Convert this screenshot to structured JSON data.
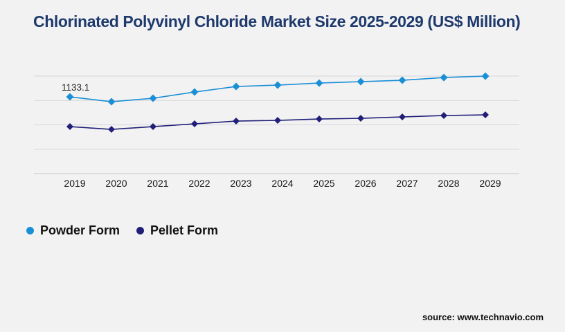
{
  "header": {
    "title": "Chlorinated Polyvinyl Chloride Market Size 2025-2029 (US$ Million)",
    "title_color": "#1e3a6c"
  },
  "chart_data": {
    "type": "line",
    "title": "Chlorinated Polyvinyl Chloride Market Size 2025-2029 (US$ Million)",
    "x": [
      2019,
      2020,
      2021,
      2022,
      2023,
      2024,
      2025,
      2026,
      2027,
      2028,
      2029
    ],
    "xlabel": "",
    "ylabel": "",
    "ylim": [
      0,
      1440
    ],
    "y_axis_labels_visible": false,
    "gridlines": true,
    "legend_position": "bottom-left",
    "series": [
      {
        "name": "Powder Form",
        "color": "#1b8fd6",
        "marker": "diamond",
        "values": [
          1133.1,
          1061.6,
          1112.7,
          1204.5,
          1286.2,
          1306.6,
          1337.2,
          1357.7,
          1378.1,
          1418.9,
          1439.3
        ]
      },
      {
        "name": "Pellet Form",
        "color": "#211f78",
        "marker": "diamond",
        "values": [
          694.1,
          653.3,
          694.1,
          735.0,
          775.8,
          786.0,
          806.4,
          816.6,
          837.1,
          857.5,
          867.7
        ]
      }
    ],
    "annotations": [
      {
        "series": "Powder Form",
        "x": 2019,
        "text": "1133.1"
      }
    ]
  },
  "legend": {
    "items": [
      {
        "label": "Powder Form",
        "color": "#1b8fd6"
      },
      {
        "label": "Pellet Form",
        "color": "#211f78"
      }
    ]
  },
  "footer": {
    "source": "source: www.technavio.com"
  },
  "colors": {
    "background": "#f2f2f3",
    "gridline": "#d6d6d9",
    "axis_line": "#c6c6c9"
  }
}
